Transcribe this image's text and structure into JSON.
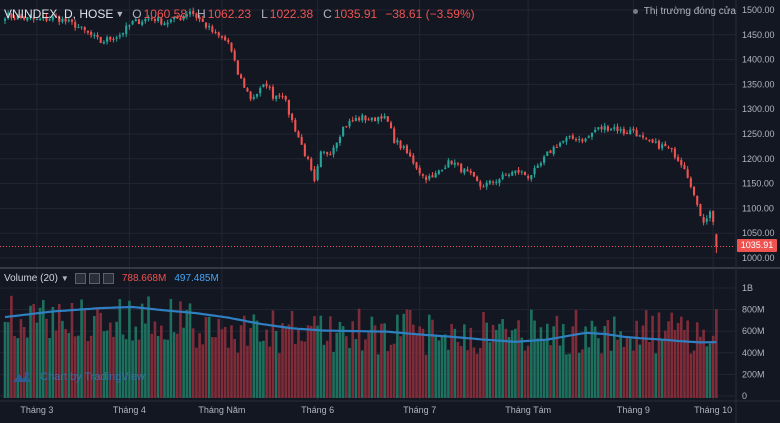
{
  "header": {
    "symbol": "VNINDEX, D, HOSE",
    "o_label": "O",
    "o_value": "1060.58",
    "h_label": "H",
    "h_value": "1062.23",
    "l_label": "L",
    "l_value": "1022.38",
    "c_label": "C",
    "c_value": "1035.91",
    "change": "−38.61 (−3.59%)"
  },
  "market_status": "Thị trường đóng cửa",
  "last_price": "1035.91",
  "volume": {
    "title": "Volume (20)",
    "last_volume": "788.668M",
    "ma_value": "497.485M"
  },
  "watermark": "Chart by TradingView",
  "colors": {
    "up": "#26a69a",
    "down": "#ef5350",
    "ma": "#2f7fc1",
    "background": "#131722",
    "grid": "#232632"
  },
  "chart_data": {
    "type": "candlestick",
    "y_axis_labels": [
      "1500.00",
      "1450.00",
      "1400.00",
      "1350.00",
      "1300.00",
      "1250.00",
      "1200.00",
      "1150.00",
      "1100.00",
      "1050.00",
      "1000.00"
    ],
    "ylim": [
      1000,
      1525
    ],
    "volume_axis_labels": [
      "1B",
      "800M",
      "600M",
      "400M",
      "200M",
      "0"
    ],
    "volume_ylim": [
      0,
      1050
    ],
    "x_axis_labels": [
      "Tháng 3",
      "Tháng 4",
      "Tháng Năm",
      "Tháng 6",
      "Tháng 7",
      "Tháng Tám",
      "Tháng 9",
      "Tháng 10"
    ],
    "close_waypoints": [
      [
        0,
        1510
      ],
      [
        10,
        1500
      ],
      [
        16,
        1505
      ],
      [
        22,
        1490
      ],
      [
        30,
        1455
      ],
      [
        36,
        1470
      ],
      [
        40,
        1495
      ],
      [
        46,
        1505
      ],
      [
        50,
        1495
      ],
      [
        55,
        1505
      ],
      [
        58,
        1520
      ],
      [
        62,
        1495
      ],
      [
        66,
        1470
      ],
      [
        70,
        1455
      ],
      [
        73,
        1390
      ],
      [
        77,
        1340
      ],
      [
        79,
        1350
      ],
      [
        82,
        1370
      ],
      [
        84,
        1345
      ],
      [
        87,
        1350
      ],
      [
        89,
        1310
      ],
      [
        92,
        1260
      ],
      [
        95,
        1210
      ],
      [
        97,
        1165
      ],
      [
        99,
        1225
      ],
      [
        102,
        1230
      ],
      [
        104,
        1255
      ],
      [
        106,
        1280
      ],
      [
        109,
        1295
      ],
      [
        112,
        1300
      ],
      [
        115,
        1295
      ],
      [
        118,
        1305
      ],
      [
        120,
        1290
      ],
      [
        122,
        1255
      ],
      [
        125,
        1235
      ],
      [
        128,
        1210
      ],
      [
        131,
        1180
      ],
      [
        134,
        1175
      ],
      [
        137,
        1200
      ],
      [
        140,
        1210
      ],
      [
        143,
        1195
      ],
      [
        146,
        1180
      ],
      [
        149,
        1160
      ],
      [
        152,
        1165
      ],
      [
        155,
        1175
      ],
      [
        158,
        1185
      ],
      [
        161,
        1190
      ],
      [
        164,
        1180
      ],
      [
        167,
        1195
      ],
      [
        170,
        1225
      ],
      [
        173,
        1245
      ],
      [
        176,
        1255
      ],
      [
        179,
        1258
      ],
      [
        182,
        1255
      ],
      [
        185,
        1275
      ],
      [
        188,
        1280
      ],
      [
        191,
        1280
      ],
      [
        194,
        1270
      ],
      [
        197,
        1275
      ],
      [
        199,
        1260
      ],
      [
        201,
        1250
      ],
      [
        204,
        1245
      ],
      [
        207,
        1240
      ],
      [
        210,
        1225
      ],
      [
        213,
        1200
      ],
      [
        215,
        1165
      ],
      [
        217,
        1115
      ],
      [
        219,
        1090
      ],
      [
        221,
        1105
      ],
      [
        222,
        1090
      ],
      [
        223,
        1035.91
      ]
    ],
    "month_start_index": [
      10,
      39,
      68,
      98,
      130,
      164,
      197,
      222
    ],
    "volume_ma_waypoints": [
      [
        0,
        720
      ],
      [
        15,
        770
      ],
      [
        30,
        800
      ],
      [
        40,
        810
      ],
      [
        50,
        780
      ],
      [
        60,
        755
      ],
      [
        70,
        715
      ],
      [
        80,
        660
      ],
      [
        90,
        620
      ],
      [
        100,
        600
      ],
      [
        110,
        595
      ],
      [
        120,
        590
      ],
      [
        130,
        565
      ],
      [
        140,
        545
      ],
      [
        150,
        520
      ],
      [
        160,
        500
      ],
      [
        165,
        510
      ],
      [
        170,
        520
      ],
      [
        176,
        550
      ],
      [
        182,
        580
      ],
      [
        188,
        570
      ],
      [
        194,
        545
      ],
      [
        200,
        530
      ],
      [
        206,
        520
      ],
      [
        212,
        505
      ],
      [
        218,
        495
      ],
      [
        223,
        497
      ]
    ]
  }
}
